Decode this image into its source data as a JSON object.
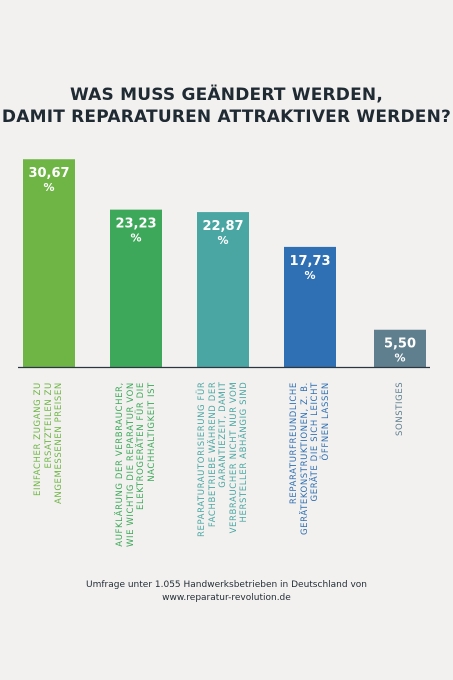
{
  "title_lines": [
    "WAS MUSS GEÄNDERT WERDEN,",
    "DAMIT REPARATUREN ATTRAKTIVER WERDEN?"
  ],
  "chart_data": {
    "type": "bar",
    "ylim": [
      0,
      31
    ],
    "unit": "%",
    "grid": false,
    "legend": "none",
    "categories": [
      [
        "EINFACHER ZUGANG ZU",
        "ERSATZTEILEN ZU",
        "ANGEMESSENEN PREISEN"
      ],
      [
        "AUFKLÄRUNG DER VERBRAUCHER,",
        "WIE WICHTIG DIE REPARATUR VON",
        "ELEKTROGERÄTEN FÜR DIE",
        "NACHHALTIGKEIT IST"
      ],
      [
        "REPARATURAUTORISIERUNG FÜR",
        "FACHBETRIEBE WÄHREND DER",
        "GARANTIEZEIT, DAMIT",
        "VERBRAUCHER NICHT NUR VOM",
        "HERSTELLER ABHÄNGIG SIND"
      ],
      [
        "REPARATURFREUNDLICHE",
        "GERÄTEKONSTRUKTIONEN, Z. B.",
        "GERÄTE DIE SICH LEICHT",
        "ÖFFNEN LASSEN"
      ],
      [
        "SONSTIGES"
      ]
    ],
    "value_labels": [
      "30,67",
      "23,23",
      "22,87",
      "17,73",
      "5,50"
    ],
    "values": [
      30.67,
      23.23,
      22.87,
      17.73,
      5.5
    ],
    "colors": [
      "#6eb545",
      "#3ea85a",
      "#4aa6a3",
      "#2f6fb3",
      "#5f7f8e"
    ]
  },
  "footer": {
    "line1": "Umfrage unter 1.055 Handwerksbetrieben in Deutschland von",
    "line2": "www.reparatur-revolution.de"
  }
}
